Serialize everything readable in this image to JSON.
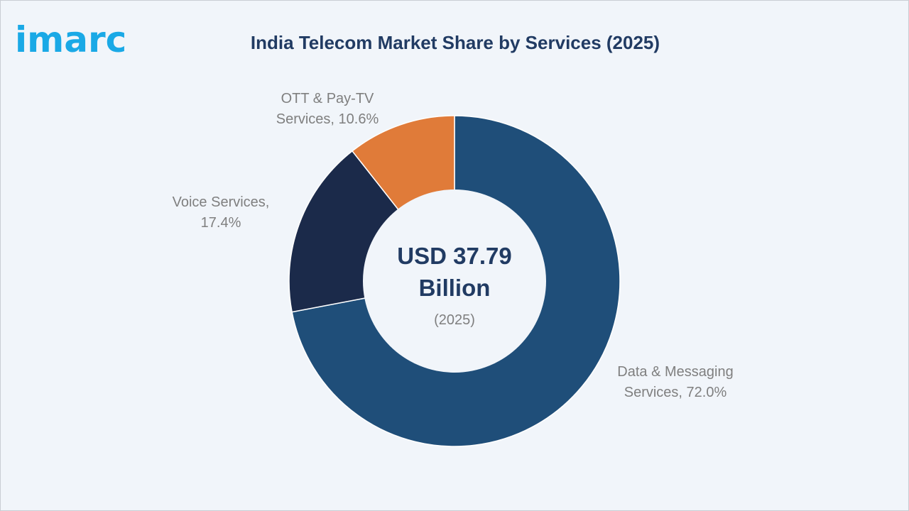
{
  "header": {
    "logo_text": "imarc",
    "title": "India Telecom Market Share by Services (2025)"
  },
  "center": {
    "line1": "USD 37.79",
    "line2": "Billion",
    "line3": "(2025)"
  },
  "chart_data": {
    "type": "pie",
    "donut": true,
    "title": "India Telecom Market Share by Services (2025)",
    "slices": [
      {
        "name": "Data & Messaging Services",
        "label_lines": [
          "Data & Messaging",
          "Services, 72.0%"
        ],
        "value": 72.0,
        "color": "#1f4e79"
      },
      {
        "name": "Voice Services",
        "label_lines": [
          "Voice Services,",
          "17.4%"
        ],
        "value": 17.4,
        "color": "#1b2a4a"
      },
      {
        "name": "OTT & Pay-TV Services",
        "label_lines": [
          "OTT & Pay-TV",
          "Services, 10.6%"
        ],
        "value": 10.6,
        "color": "#e07b39"
      }
    ],
    "unit": "%"
  }
}
